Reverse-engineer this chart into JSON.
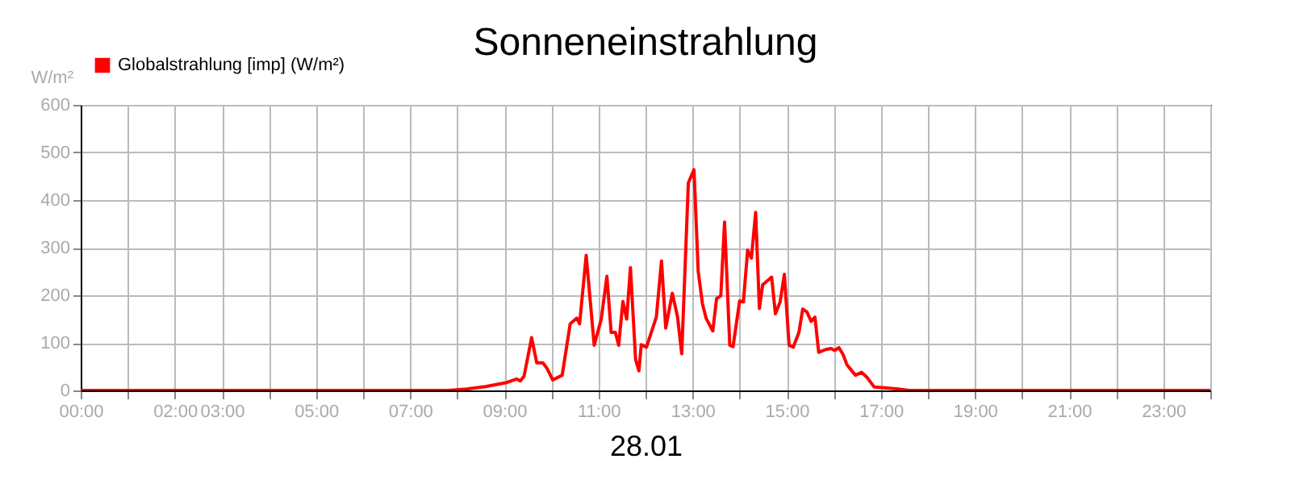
{
  "chart_data": {
    "type": "line",
    "title": "Sonneneinstrahlung",
    "xlabel": "28.01",
    "ylabel": "W/m²",
    "xlim": [
      0,
      24
    ],
    "ylim": [
      0,
      600
    ],
    "yticks": [
      0,
      100,
      200,
      300,
      400,
      500,
      600
    ],
    "xticks": [
      {
        "value": 0,
        "label": "00:00"
      },
      {
        "value": 1,
        "label": null
      },
      {
        "value": 2,
        "label": "02:00"
      },
      {
        "value": 3,
        "label": "03:00"
      },
      {
        "value": 4,
        "label": null
      },
      {
        "value": 5,
        "label": "05:00"
      },
      {
        "value": 6,
        "label": null
      },
      {
        "value": 7,
        "label": "07:00"
      },
      {
        "value": 8,
        "label": null
      },
      {
        "value": 9,
        "label": "09:00"
      },
      {
        "value": 10,
        "label": null
      },
      {
        "value": 11,
        "label": "11:00"
      },
      {
        "value": 12,
        "label": null
      },
      {
        "value": 13,
        "label": "13:00"
      },
      {
        "value": 14,
        "label": null
      },
      {
        "value": 15,
        "label": "15:00"
      },
      {
        "value": 16,
        "label": null
      },
      {
        "value": 17,
        "label": "17:00"
      },
      {
        "value": 18,
        "label": null
      },
      {
        "value": 19,
        "label": "19:00"
      },
      {
        "value": 20,
        "label": null
      },
      {
        "value": 21,
        "label": "21:00"
      },
      {
        "value": 22,
        "label": null
      },
      {
        "value": 23,
        "label": "23:00"
      },
      {
        "value": 24,
        "label": null
      }
    ],
    "grid": true,
    "legend": "top left",
    "line_style": "solid",
    "series": [
      {
        "name": "Globalstrahlung [imp] (W/m²)",
        "color": "#ff0000",
        "x": [
          0,
          7.8,
          8.2,
          8.6,
          9.03,
          9.26,
          9.34,
          9.42,
          9.58,
          9.69,
          9.82,
          9.91,
          10.03,
          10.23,
          10.4,
          10.54,
          10.6,
          10.74,
          10.91,
          11.06,
          11.18,
          11.27,
          11.36,
          11.43,
          11.52,
          11.6,
          11.68,
          11.79,
          11.86,
          11.91,
          12.02,
          12.23,
          12.34,
          12.43,
          12.57,
          12.68,
          12.77,
          12.91,
          13.03,
          13.12,
          13.21,
          13.29,
          13.43,
          13.51,
          13.6,
          13.68,
          13.79,
          13.86,
          14.0,
          14.08,
          14.17,
          14.25,
          14.34,
          14.42,
          14.49,
          14.68,
          14.76,
          14.86,
          14.95,
          15.05,
          15.14,
          15.26,
          15.34,
          15.43,
          15.52,
          15.6,
          15.68,
          15.83,
          15.94,
          16.02,
          16.11,
          16.2,
          16.28,
          16.46,
          16.59,
          16.71,
          16.86,
          17.03,
          17.37,
          17.6,
          24
        ],
        "values": [
          0,
          0,
          3,
          8,
          16,
          24,
          20,
          30,
          111,
          58,
          58,
          46,
          22,
          32,
          140,
          152,
          140,
          284,
          95,
          150,
          240,
          122,
          122,
          95,
          187,
          150,
          258,
          65,
          41,
          96,
          91,
          154,
          272,
          131,
          204,
          155,
          77,
          436,
          464,
          250,
          182,
          151,
          125,
          193,
          199,
          354,
          95,
          92,
          188,
          186,
          295,
          278,
          374,
          172,
          222,
          238,
          161,
          186,
          244,
          95,
          91,
          122,
          171,
          165,
          145,
          154,
          80,
          86,
          88,
          84,
          90,
          75,
          54,
          32,
          38,
          27,
          7,
          6,
          3,
          0,
          0
        ]
      }
    ]
  }
}
